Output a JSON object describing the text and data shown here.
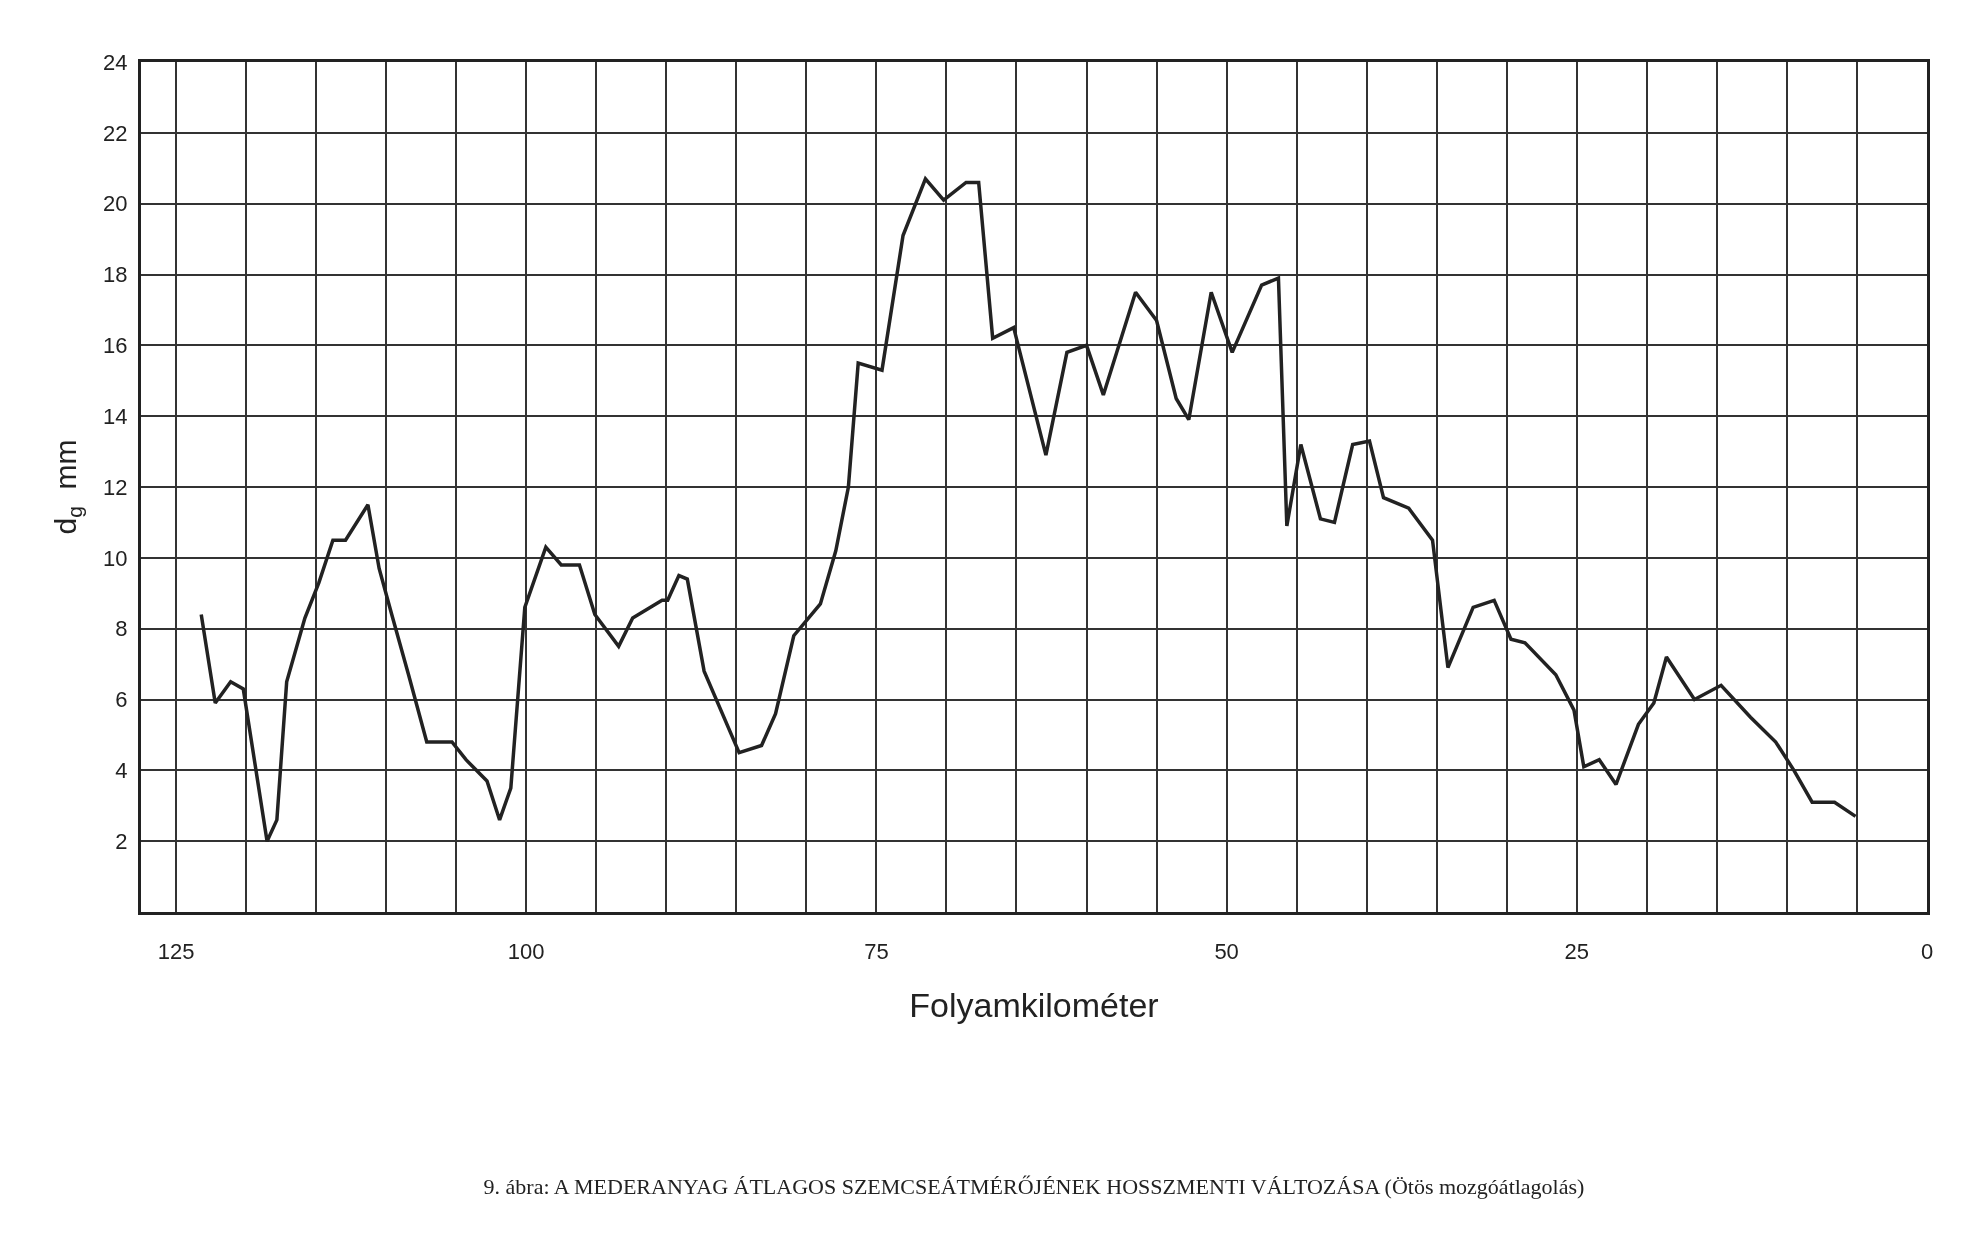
{
  "chart_data": {
    "type": "line",
    "title": "9. ábra: A MEDERANYAG ÁTLAGOS SZEMCSEÁTMÉRŐJÉNEK HOSSZMENTI VÁLTOZÁSA (Ötös mozgóátlagolás)",
    "xlabel": "Folyamkilométer",
    "ylabel": "d$_{g}$  mm",
    "series": [
      {
        "color": "#222222",
        "x": [
          123.2,
          122.2,
          121.1,
          120.2,
          118.5,
          117.8,
          117.1,
          115.8,
          114.8,
          113.8,
          112.9,
          111.3,
          110.5,
          109.6,
          108.4,
          107.1,
          105.3,
          104.3,
          102.8,
          101.9,
          101.1,
          100.1,
          98.6,
          97.5,
          96.2,
          95.1,
          93.4,
          92.4,
          90.3,
          89.9,
          89.1,
          88.5,
          87.3,
          84.8,
          83.2,
          82.2,
          80.9,
          79.0,
          77.9,
          77.0,
          76.3,
          74.6,
          73.1,
          71.5,
          70.2,
          68.6,
          67.7,
          66.7,
          65.2,
          62.9,
          61.4,
          60.0,
          58.8,
          56.5,
          55.0,
          53.6,
          52.7,
          51.1,
          49.6,
          47.5,
          46.3,
          45.7,
          44.7,
          43.3,
          42.3,
          41.0,
          39.8,
          38.8,
          37.0,
          35.3,
          34.2,
          32.4,
          30.9,
          29.7,
          28.7,
          26.5,
          25.2,
          24.5,
          23.4,
          22.2,
          20.6,
          19.5,
          18.6,
          16.6,
          14.7,
          12.6,
          10.8,
          9.5,
          8.2,
          6.6,
          5.1
        ],
        "values": [
          8.4,
          5.9,
          6.5,
          6.3,
          2.0,
          2.6,
          6.5,
          8.3,
          9.3,
          10.5,
          10.5,
          11.5,
          9.7,
          8.4,
          6.7,
          4.8,
          4.8,
          4.3,
          3.7,
          2.6,
          3.5,
          8.6,
          10.3,
          9.8,
          9.8,
          8.4,
          7.5,
          8.3,
          8.8,
          8.8,
          9.5,
          9.4,
          6.8,
          4.5,
          4.7,
          5.6,
          7.8,
          8.7,
          10.2,
          12.0,
          15.5,
          15.3,
          19.1,
          20.7,
          20.1,
          20.6,
          20.6,
          16.2,
          16.5,
          12.9,
          15.8,
          16.0,
          14.6,
          17.5,
          16.7,
          14.5,
          13.9,
          17.5,
          15.8,
          17.7,
          17.9,
          10.9,
          13.2,
          11.1,
          11.0,
          13.2,
          13.3,
          11.7,
          11.4,
          10.5,
          6.9,
          8.6,
          8.8,
          7.7,
          7.6,
          6.7,
          5.7,
          4.1,
          4.3,
          3.6,
          5.3,
          5.9,
          7.2,
          6.0,
          6.4,
          5.5,
          4.8,
          4.0,
          3.1,
          3.1,
          2.7
        ]
      }
    ],
    "xlim": [
      127.5,
      0
    ],
    "xticks": [
      125,
      {
        "value": 120,
        "label": null
      },
      {
        "value": 115,
        "label": null
      },
      {
        "value": 110,
        "label": null
      },
      {
        "value": 105,
        "label": null
      },
      100,
      {
        "value": 95,
        "label": null
      },
      {
        "value": 90,
        "label": null
      },
      {
        "value": 85,
        "label": null
      },
      {
        "value": 80,
        "label": null
      },
      75,
      {
        "value": 70,
        "label": null
      },
      {
        "value": 65,
        "label": null
      },
      {
        "value": 60,
        "label": null
      },
      {
        "value": 55,
        "label": null
      },
      50,
      {
        "value": 45,
        "label": null
      },
      {
        "value": 40,
        "label": null
      },
      {
        "value": 35,
        "label": null
      },
      {
        "value": 30,
        "label": null
      },
      25,
      {
        "value": 20,
        "label": null
      },
      {
        "value": 15,
        "label": null
      },
      {
        "value": 10,
        "label": null
      },
      {
        "value": 5,
        "label": null
      },
      0
    ],
    "ylim": [
      0,
      24
    ],
    "yticks": [
      2,
      4,
      6,
      8,
      10,
      12,
      14,
      16,
      18,
      20,
      22,
      24
    ],
    "grid": true,
    "legend": false,
    "marker": "none",
    "line_style": "solid"
  }
}
